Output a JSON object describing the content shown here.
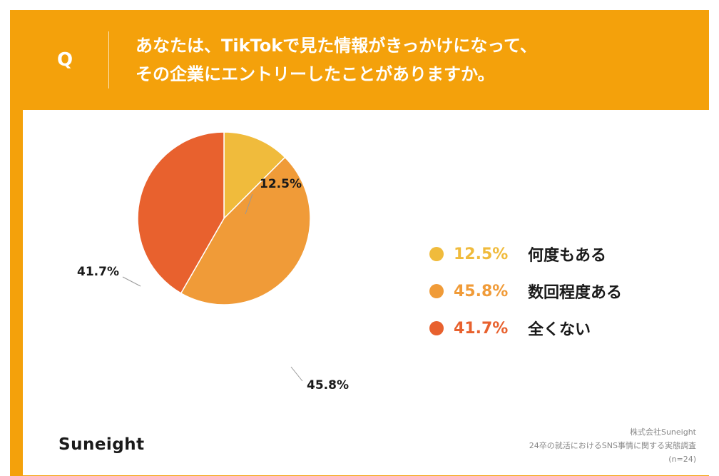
{
  "header": {
    "q_mark": "Q",
    "question_line1": "あなたは、TikTokで見た情報がきっかけになって、",
    "question_line2": "その企業にエントリーしたことがありますか。"
  },
  "colors": {
    "frame": "#f4a10b",
    "slice_1": "#f0bb3c",
    "slice_2": "#f09b38",
    "slice_3": "#e8612e"
  },
  "chart_data": {
    "type": "pie",
    "categories": [
      "何度もある",
      "数回程度ある",
      "全くない"
    ],
    "values": [
      12.5,
      45.8,
      41.7
    ],
    "labels": [
      "12.5%",
      "45.8%",
      "41.7%"
    ],
    "colors": [
      "#f0bb3c",
      "#f09b38",
      "#e8612e"
    ],
    "start_angle": "12 o'clock, clockwise",
    "legend_position": "right"
  },
  "legend": [
    {
      "pct": "12.5%",
      "label": "何度もある",
      "color": "#f0bb3c"
    },
    {
      "pct": "45.8%",
      "label": "数回程度ある",
      "color": "#f09b38"
    },
    {
      "pct": "41.7%",
      "label": "全くない",
      "color": "#e8612e"
    }
  ],
  "footer": {
    "brand": "Suneight",
    "source_company": "株式会社Suneight",
    "source_survey": "24卒の就活におけるSNS事情に関する実態調査",
    "source_n": "(n=24)"
  }
}
